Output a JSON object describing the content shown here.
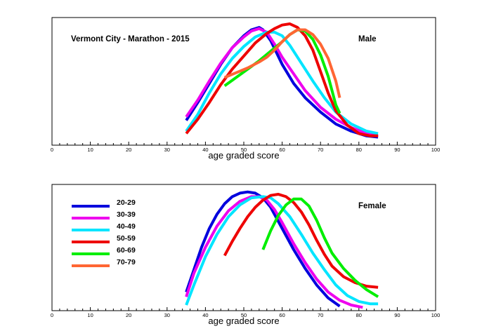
{
  "chart_data": [
    {
      "type": "line",
      "title": "Vermont City - Marathon - 2015",
      "panel_label": "Male",
      "xlabel": "age graded score",
      "ylabel": "",
      "xlim": [
        0,
        100
      ],
      "x_ticks": [
        "0",
        "10",
        "20",
        "30",
        "40",
        "50",
        "60",
        "70",
        "80",
        "90",
        "100"
      ],
      "y_axis": "no ticks or labels",
      "grid": false,
      "legend": "none",
      "series": [
        {
          "name": "20-29",
          "color": "#0000dd",
          "points": [
            [
              35,
              0.19
            ],
            [
              38,
              0.34
            ],
            [
              41,
              0.5
            ],
            [
              44,
              0.66
            ],
            [
              47,
              0.8
            ],
            [
              50,
              0.9
            ],
            [
              52,
              0.95
            ],
            [
              54,
              0.97
            ],
            [
              55,
              0.95
            ],
            [
              57,
              0.86
            ],
            [
              60,
              0.66
            ],
            [
              63,
              0.5
            ],
            [
              66,
              0.38
            ],
            [
              70,
              0.26
            ],
            [
              74,
              0.16
            ],
            [
              78,
              0.1
            ],
            [
              82,
              0.06
            ],
            [
              85,
              0.05
            ]
          ]
        },
        {
          "name": "30-39",
          "color": "#ee00ee",
          "points": [
            [
              35,
              0.22
            ],
            [
              38,
              0.36
            ],
            [
              41,
              0.52
            ],
            [
              44,
              0.67
            ],
            [
              47,
              0.8
            ],
            [
              50,
              0.89
            ],
            [
              52,
              0.94
            ],
            [
              54,
              0.96
            ],
            [
              56,
              0.93
            ],
            [
              58,
              0.83
            ],
            [
              60,
              0.72
            ],
            [
              63,
              0.58
            ],
            [
              66,
              0.44
            ],
            [
              70,
              0.3
            ],
            [
              74,
              0.2
            ],
            [
              78,
              0.13
            ],
            [
              82,
              0.08
            ],
            [
              85,
              0.06
            ]
          ]
        },
        {
          "name": "40-49",
          "color": "#00e5ff",
          "points": [
            [
              35,
              0.1
            ],
            [
              38,
              0.24
            ],
            [
              41,
              0.42
            ],
            [
              44,
              0.58
            ],
            [
              47,
              0.71
            ],
            [
              50,
              0.81
            ],
            [
              53,
              0.89
            ],
            [
              56,
              0.93
            ],
            [
              58,
              0.93
            ],
            [
              60,
              0.9
            ],
            [
              62,
              0.82
            ],
            [
              65,
              0.67
            ],
            [
              68,
              0.52
            ],
            [
              71,
              0.38
            ],
            [
              74,
              0.26
            ],
            [
              78,
              0.16
            ],
            [
              82,
              0.1
            ],
            [
              85,
              0.08
            ]
          ]
        },
        {
          "name": "50-59",
          "color": "#ee0000",
          "points": [
            [
              35,
              0.08
            ],
            [
              38,
              0.2
            ],
            [
              41,
              0.34
            ],
            [
              44,
              0.49
            ],
            [
              47,
              0.62
            ],
            [
              50,
              0.73
            ],
            [
              53,
              0.84
            ],
            [
              56,
              0.92
            ],
            [
              58,
              0.96
            ],
            [
              60,
              0.99
            ],
            [
              62,
              1.0
            ],
            [
              64,
              0.97
            ],
            [
              66,
              0.9
            ],
            [
              68,
              0.78
            ],
            [
              70,
              0.6
            ],
            [
              72,
              0.42
            ],
            [
              74,
              0.27
            ],
            [
              77,
              0.15
            ],
            [
              80,
              0.08
            ],
            [
              83,
              0.06
            ],
            [
              85,
              0.06
            ]
          ]
        },
        {
          "name": "60-69",
          "color": "#00ee00",
          "points": [
            [
              45,
              0.48
            ],
            [
              48,
              0.55
            ],
            [
              51,
              0.62
            ],
            [
              54,
              0.69
            ],
            [
              57,
              0.77
            ],
            [
              60,
              0.85
            ],
            [
              62,
              0.91
            ],
            [
              64,
              0.95
            ],
            [
              66,
              0.94
            ],
            [
              68,
              0.87
            ],
            [
              70,
              0.74
            ],
            [
              72,
              0.56
            ],
            [
              74,
              0.32
            ],
            [
              75,
              0.25
            ]
          ]
        },
        {
          "name": "70-79",
          "color": "#ff6633",
          "points": [
            [
              45,
              0.55
            ],
            [
              48,
              0.59
            ],
            [
              51,
              0.63
            ],
            [
              54,
              0.68
            ],
            [
              56,
              0.72
            ],
            [
              58,
              0.78
            ],
            [
              60,
              0.85
            ],
            [
              62,
              0.91
            ],
            [
              64,
              0.95
            ],
            [
              66,
              0.95
            ],
            [
              68,
              0.91
            ],
            [
              70,
              0.83
            ],
            [
              72,
              0.71
            ],
            [
              74,
              0.52
            ],
            [
              75,
              0.38
            ]
          ]
        }
      ]
    },
    {
      "type": "line",
      "title": "",
      "panel_label": "Female",
      "xlabel": "age graded score",
      "ylabel": "",
      "xlim": [
        0,
        100
      ],
      "x_ticks": [
        "0",
        "10",
        "20",
        "30",
        "40",
        "50",
        "60",
        "70",
        "80",
        "90",
        "100"
      ],
      "y_axis": "no ticks or labels",
      "grid": false,
      "legend": "left",
      "series": [
        {
          "name": "20-29",
          "color": "#0000dd",
          "points": [
            [
              35,
              0.14
            ],
            [
              37,
              0.33
            ],
            [
              39,
              0.52
            ],
            [
              41,
              0.68
            ],
            [
              43,
              0.8
            ],
            [
              45,
              0.89
            ],
            [
              47,
              0.95
            ],
            [
              49,
              0.98
            ],
            [
              51,
              0.99
            ],
            [
              53,
              0.98
            ],
            [
              55,
              0.94
            ],
            [
              57,
              0.86
            ],
            [
              60,
              0.68
            ],
            [
              63,
              0.5
            ],
            [
              66,
              0.34
            ],
            [
              69,
              0.2
            ],
            [
              72,
              0.09
            ],
            [
              75,
              0.02
            ]
          ]
        },
        {
          "name": "30-39",
          "color": "#ee00ee",
          "points": [
            [
              35,
              0.1
            ],
            [
              37,
              0.3
            ],
            [
              40,
              0.52
            ],
            [
              43,
              0.7
            ],
            [
              46,
              0.83
            ],
            [
              49,
              0.91
            ],
            [
              52,
              0.95
            ],
            [
              54,
              0.95
            ],
            [
              56,
              0.92
            ],
            [
              58,
              0.84
            ],
            [
              60,
              0.73
            ],
            [
              63,
              0.55
            ],
            [
              66,
              0.39
            ],
            [
              69,
              0.25
            ],
            [
              72,
              0.14
            ],
            [
              75,
              0.07
            ],
            [
              78,
              0.03
            ],
            [
              81,
              0.01
            ]
          ]
        },
        {
          "name": "40-49",
          "color": "#00e5ff",
          "points": [
            [
              35,
              0.03
            ],
            [
              37,
              0.2
            ],
            [
              40,
              0.44
            ],
            [
              43,
              0.63
            ],
            [
              46,
              0.78
            ],
            [
              49,
              0.88
            ],
            [
              52,
              0.94
            ],
            [
              55,
              0.95
            ],
            [
              57,
              0.94
            ],
            [
              59,
              0.89
            ],
            [
              62,
              0.78
            ],
            [
              65,
              0.63
            ],
            [
              68,
              0.47
            ],
            [
              71,
              0.33
            ],
            [
              74,
              0.2
            ],
            [
              77,
              0.11
            ],
            [
              80,
              0.06
            ],
            [
              83,
              0.04
            ],
            [
              85,
              0.04
            ]
          ]
        },
        {
          "name": "50-59",
          "color": "#ee0000",
          "points": [
            [
              45,
              0.45
            ],
            [
              47,
              0.57
            ],
            [
              49,
              0.68
            ],
            [
              51,
              0.78
            ],
            [
              53,
              0.86
            ],
            [
              55,
              0.92
            ],
            [
              57,
              0.96
            ],
            [
              59,
              0.97
            ],
            [
              61,
              0.95
            ],
            [
              63,
              0.9
            ],
            [
              65,
              0.82
            ],
            [
              67,
              0.71
            ],
            [
              69,
              0.58
            ],
            [
              71,
              0.46
            ],
            [
              73,
              0.36
            ],
            [
              76,
              0.27
            ],
            [
              79,
              0.22
            ],
            [
              82,
              0.19
            ],
            [
              85,
              0.18
            ]
          ]
        },
        {
          "name": "60-69",
          "color": "#00ee00",
          "points": [
            [
              55,
              0.5
            ],
            [
              57,
              0.66
            ],
            [
              59,
              0.79
            ],
            [
              61,
              0.88
            ],
            [
              63,
              0.93
            ],
            [
              65,
              0.93
            ],
            [
              67,
              0.87
            ],
            [
              69,
              0.75
            ],
            [
              71,
              0.6
            ],
            [
              73,
              0.47
            ],
            [
              76,
              0.34
            ],
            [
              79,
              0.24
            ],
            [
              82,
              0.16
            ],
            [
              85,
              0.1
            ]
          ]
        }
      ]
    }
  ]
}
